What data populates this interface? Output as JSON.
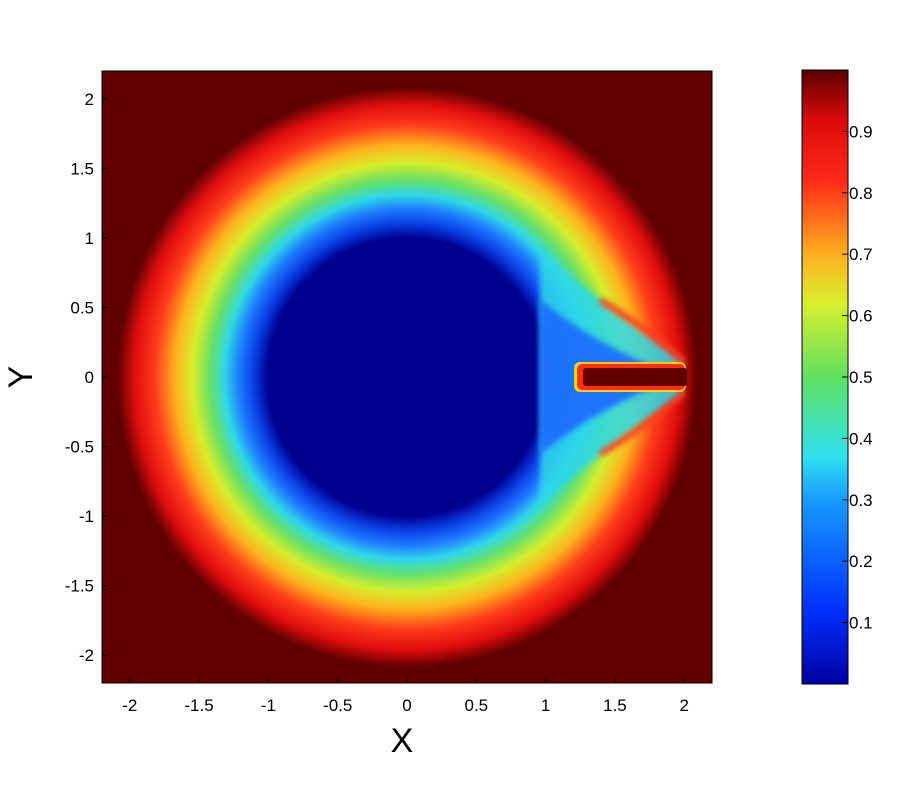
{
  "chart_data": {
    "type": "heatmap",
    "title": "",
    "xlabel": "X",
    "ylabel": "Y",
    "xlim": [
      -2.2,
      2.2
    ],
    "ylim": [
      -2.2,
      2.2
    ],
    "x_ticks": [
      -2,
      -1.5,
      -1,
      -0.5,
      0,
      0.5,
      1,
      1.5,
      2
    ],
    "x_tick_labels": [
      "-2",
      "-1.5",
      "-1",
      "-0.5",
      "0",
      "0.5",
      "1",
      "1.5",
      "2"
    ],
    "y_ticks": [
      2,
      1.5,
      1,
      0.5,
      0,
      -0.5,
      -1,
      -1.5,
      -2
    ],
    "y_tick_labels": [
      "2",
      "1.5",
      "1",
      "0.5",
      "0",
      "-0.5",
      "-1",
      "-1.5",
      "-2"
    ],
    "colorbar": {
      "range": [
        0,
        1
      ],
      "ticks": [
        0.9,
        0.8,
        0.7,
        0.6,
        0.5,
        0.4,
        0.3,
        0.2,
        0.1
      ],
      "tick_labels": [
        "0.9",
        "0.8",
        "0.7",
        "0.6",
        "0.5",
        "0.4",
        "0.3",
        "0.2",
        "0.1"
      ],
      "colormap": "jet"
    },
    "field": {
      "description_values": "scalar field: ~0 inside circle of radius ~1 centred at origin, rising through 0.5 near radius ~1.5 to ~1 beyond radius ~2; slot opening along +x axis from x~1.25 to x~2 with |y|<0.07",
      "inner_radius": 1.0,
      "mid_radius": 1.5,
      "outer_radius": 2.0,
      "slot_x_start": 1.25,
      "slot_x_end": 2.0,
      "slot_half_width": 0.07
    },
    "grid": false,
    "legend": "none"
  }
}
